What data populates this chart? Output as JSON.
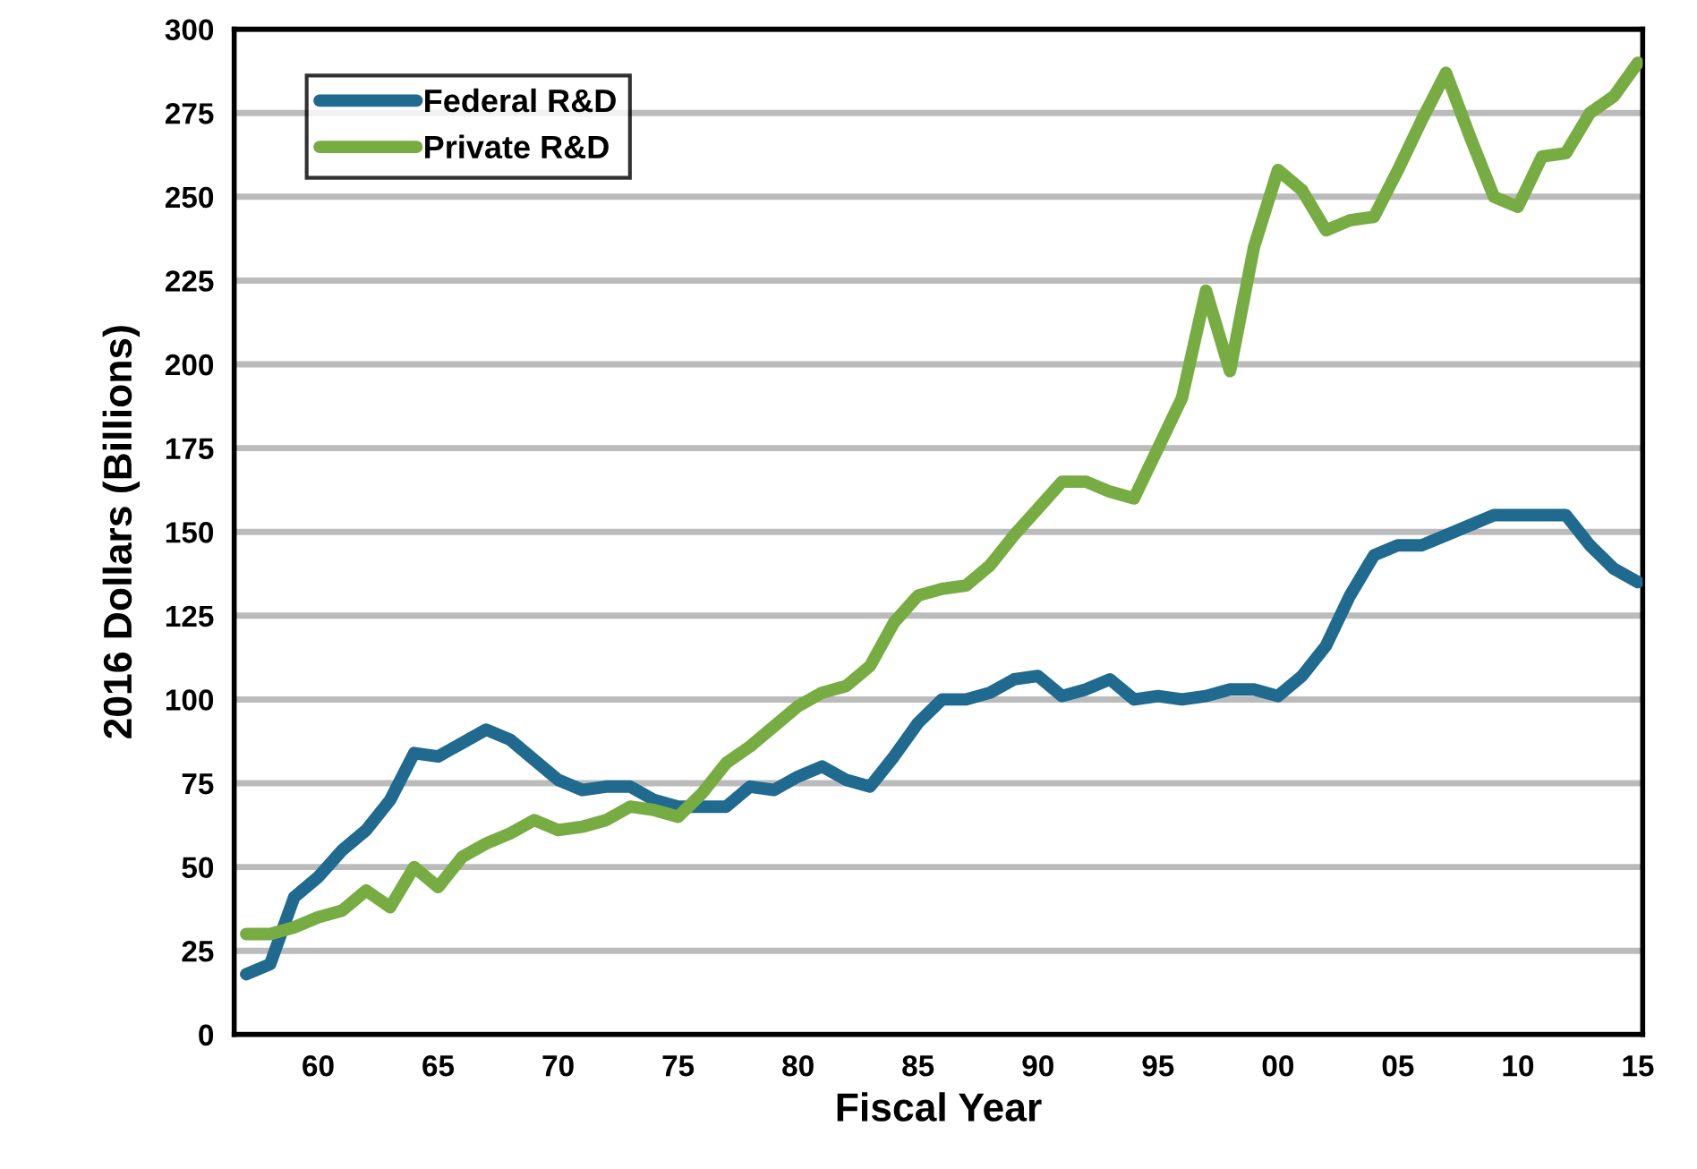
{
  "chart_data": {
    "type": "line",
    "xlabel": "Fiscal Year",
    "ylabel": "2016 Dollars (Billions)",
    "x": [
      1957,
      1958,
      1959,
      1960,
      1961,
      1962,
      1963,
      1964,
      1965,
      1966,
      1967,
      1968,
      1969,
      1970,
      1971,
      1972,
      1973,
      1974,
      1975,
      1976,
      1977,
      1978,
      1979,
      1980,
      1981,
      1982,
      1983,
      1984,
      1985,
      1986,
      1987,
      1988,
      1989,
      1990,
      1991,
      1992,
      1993,
      1994,
      1995,
      1996,
      1997,
      1998,
      1999,
      2000,
      2001,
      2002,
      2003,
      2004,
      2005,
      2006,
      2007,
      2008,
      2009,
      2010,
      2011,
      2012,
      2013,
      2014,
      2015
    ],
    "series": [
      {
        "name": "Federal R&D",
        "color": "#1f6a8e",
        "values": [
          18,
          21,
          41,
          47,
          55,
          61,
          70,
          84,
          83,
          87,
          91,
          88,
          82,
          76,
          73,
          74,
          74,
          70,
          68,
          68,
          68,
          74,
          73,
          77,
          80,
          76,
          74,
          83,
          93,
          100,
          100,
          102,
          106,
          107,
          101,
          103,
          106,
          100,
          101,
          100,
          101,
          103,
          103,
          101,
          107,
          116,
          131,
          143,
          146,
          146,
          149,
          152,
          155,
          155,
          155,
          155,
          146,
          139,
          135
        ]
      },
      {
        "name": "Private R&D",
        "color": "#77ac43",
        "values": [
          30,
          30,
          32,
          35,
          37,
          43,
          38,
          50,
          44,
          53,
          57,
          60,
          64,
          61,
          62,
          64,
          68,
          67,
          65,
          72,
          81,
          86,
          92,
          98,
          102,
          104,
          110,
          123,
          131,
          133,
          134,
          140,
          149,
          157,
          165,
          165,
          162,
          160,
          175,
          190,
          222,
          198,
          235,
          258,
          252,
          240,
          243,
          244,
          258,
          273,
          287,
          268,
          250,
          247,
          262,
          263,
          275,
          280,
          290
        ]
      }
    ],
    "xlim": [
      1956.5,
      2015.2
    ],
    "ylim": [
      0,
      300
    ],
    "xticks": [
      {
        "value": 1960,
        "label": "60"
      },
      {
        "value": 1965,
        "label": "65"
      },
      {
        "value": 1970,
        "label": "70"
      },
      {
        "value": 1975,
        "label": "75"
      },
      {
        "value": 1980,
        "label": "80"
      },
      {
        "value": 1985,
        "label": "85"
      },
      {
        "value": 1990,
        "label": "90"
      },
      {
        "value": 1995,
        "label": "95"
      },
      {
        "value": 2000,
        "label": "00"
      },
      {
        "value": 2005,
        "label": "05"
      },
      {
        "value": 2010,
        "label": "10"
      },
      {
        "value": 2015,
        "label": "15"
      }
    ],
    "yticks": [
      0,
      25,
      50,
      75,
      100,
      125,
      150,
      175,
      200,
      225,
      250,
      275,
      300
    ],
    "grid": "y",
    "legend": "top left",
    "marker": "none",
    "line_style": "solid"
  }
}
